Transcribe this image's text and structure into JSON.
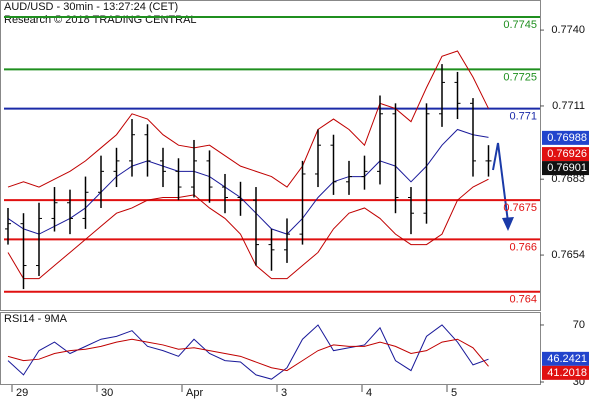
{
  "chart_data": [
    {
      "type": "ohlc",
      "title": "AUD/USD - 30min - 13:27:24 (CET)",
      "subtitle": "Research © 2018 TRADING CENTRAL",
      "color": "#000000",
      "open": [
        0.7664,
        0.7666,
        0.765,
        0.7668,
        0.7674,
        0.7668,
        0.7678,
        0.7686,
        0.769,
        0.77,
        0.769,
        0.7686,
        0.768,
        0.769,
        0.768,
        0.7676,
        0.7675,
        0.7658,
        0.7656,
        0.7662,
        0.7685,
        0.7696,
        0.7682,
        0.7684,
        0.7686,
        0.7708,
        0.7676,
        0.767,
        0.7708,
        0.772,
        0.7712,
        0.769
      ],
      "high": [
        0.7672,
        0.767,
        0.7674,
        0.768,
        0.7679,
        0.7684,
        0.7692,
        0.7695,
        0.7706,
        0.7704,
        0.7695,
        0.7691,
        0.7698,
        0.7694,
        0.7685,
        0.7682,
        0.768,
        0.7664,
        0.7668,
        0.769,
        0.7702,
        0.77,
        0.769,
        0.7692,
        0.7715,
        0.7712,
        0.768,
        0.7712,
        0.7727,
        0.7724,
        0.7714,
        0.7696
      ],
      "low": [
        0.7658,
        0.7641,
        0.7646,
        0.7663,
        0.7662,
        0.7664,
        0.7672,
        0.768,
        0.7684,
        0.7684,
        0.768,
        0.7675,
        0.7676,
        0.7674,
        0.767,
        0.7669,
        0.765,
        0.7648,
        0.7651,
        0.7658,
        0.768,
        0.7677,
        0.7677,
        0.7679,
        0.7681,
        0.767,
        0.7662,
        0.7666,
        0.7703,
        0.7706,
        0.7684,
        0.7684
      ],
      "close": [
        0.7666,
        0.765,
        0.7668,
        0.7674,
        0.7668,
        0.7678,
        0.7686,
        0.769,
        0.77,
        0.769,
        0.7686,
        0.768,
        0.769,
        0.768,
        0.7676,
        0.7675,
        0.7658,
        0.7656,
        0.7662,
        0.7685,
        0.7696,
        0.7682,
        0.7684,
        0.7686,
        0.7708,
        0.7676,
        0.767,
        0.7708,
        0.772,
        0.7712,
        0.769,
        0.769
      ],
      "bands": {
        "color": "#c00000",
        "upper": [
          0.768,
          0.7682,
          0.768,
          0.7683,
          0.7686,
          0.769,
          0.7695,
          0.77,
          0.7708,
          0.7706,
          0.77,
          0.7696,
          0.7695,
          0.7696,
          0.7692,
          0.7688,
          0.7686,
          0.7684,
          0.768,
          0.7688,
          0.7702,
          0.7706,
          0.7702,
          0.7696,
          0.7712,
          0.771,
          0.7705,
          0.7718,
          0.773,
          0.7732,
          0.7722,
          0.771
        ],
        "lower": [
          0.7655,
          0.7645,
          0.7645,
          0.765,
          0.7655,
          0.766,
          0.7665,
          0.767,
          0.7672,
          0.7675,
          0.7676,
          0.7676,
          0.7677,
          0.7672,
          0.7668,
          0.7662,
          0.765,
          0.7645,
          0.7645,
          0.765,
          0.7655,
          0.7664,
          0.767,
          0.7672,
          0.7668,
          0.7662,
          0.7658,
          0.7658,
          0.7662,
          0.7675,
          0.768,
          0.7683
        ]
      },
      "moving_average": {
        "color": "#1a1a9a",
        "values": [
          0.7668,
          0.7664,
          0.7662,
          0.7665,
          0.7668,
          0.7672,
          0.7678,
          0.7684,
          0.7688,
          0.769,
          0.7688,
          0.7686,
          0.7686,
          0.7684,
          0.768,
          0.7676,
          0.767,
          0.7664,
          0.7662,
          0.7668,
          0.7676,
          0.7682,
          0.7684,
          0.7684,
          0.769,
          0.7688,
          0.7682,
          0.7688,
          0.7696,
          0.7702,
          0.77,
          0.7699
        ]
      },
      "levels": [
        {
          "value": 0.7745,
          "color": "#1f8f1f"
        },
        {
          "value": 0.7725,
          "color": "#1f8f1f"
        },
        {
          "value": 0.771,
          "color": "#1a2aa8"
        },
        {
          "value": 0.7675,
          "color": "#e01010"
        },
        {
          "value": 0.766,
          "color": "#e01010"
        },
        {
          "value": 0.764,
          "color": "#e01010"
        }
      ],
      "price_tags": [
        {
          "value": 0.76988,
          "color": "#2244cc"
        },
        {
          "value": 0.76926,
          "color": "#e01010"
        },
        {
          "value": 0.76901,
          "color": "#111111"
        }
      ],
      "ylim": [
        0.7633,
        0.77515
      ],
      "yticks": [
        {
          "value": 0.774,
          "label": "0.7740"
        },
        0.7711,
        0.7683,
        0.7654
      ]
    },
    {
      "type": "line",
      "title": "RSI14 - 9MA",
      "series": [
        {
          "color": "#1a1a9a",
          "values": [
            45,
            35,
            52,
            58,
            50,
            55,
            60,
            62,
            66,
            55,
            52,
            48,
            60,
            50,
            45,
            44,
            35,
            32,
            40,
            60,
            70,
            52,
            54,
            56,
            68,
            45,
            38,
            62,
            70,
            58,
            42,
            46
          ]
        },
        {
          "color": "#c00000",
          "values": [
            48,
            45,
            46,
            50,
            52,
            53,
            55,
            58,
            60,
            58,
            56,
            53,
            54,
            52,
            50,
            48,
            44,
            40,
            38,
            45,
            52,
            56,
            55,
            55,
            58,
            55,
            50,
            52,
            58,
            60,
            54,
            41
          ]
        }
      ],
      "price_tags": [
        {
          "value": 46.2421,
          "color": "#2244cc"
        },
        {
          "value": 41.2018,
          "color": "#e01010"
        }
      ],
      "ylim": [
        27.9,
        79.1
      ],
      "yticks": [
        30,
        70
      ],
      "x_labels": [
        "29",
        "30",
        "Apr",
        "3",
        "4",
        "5"
      ]
    }
  ]
}
